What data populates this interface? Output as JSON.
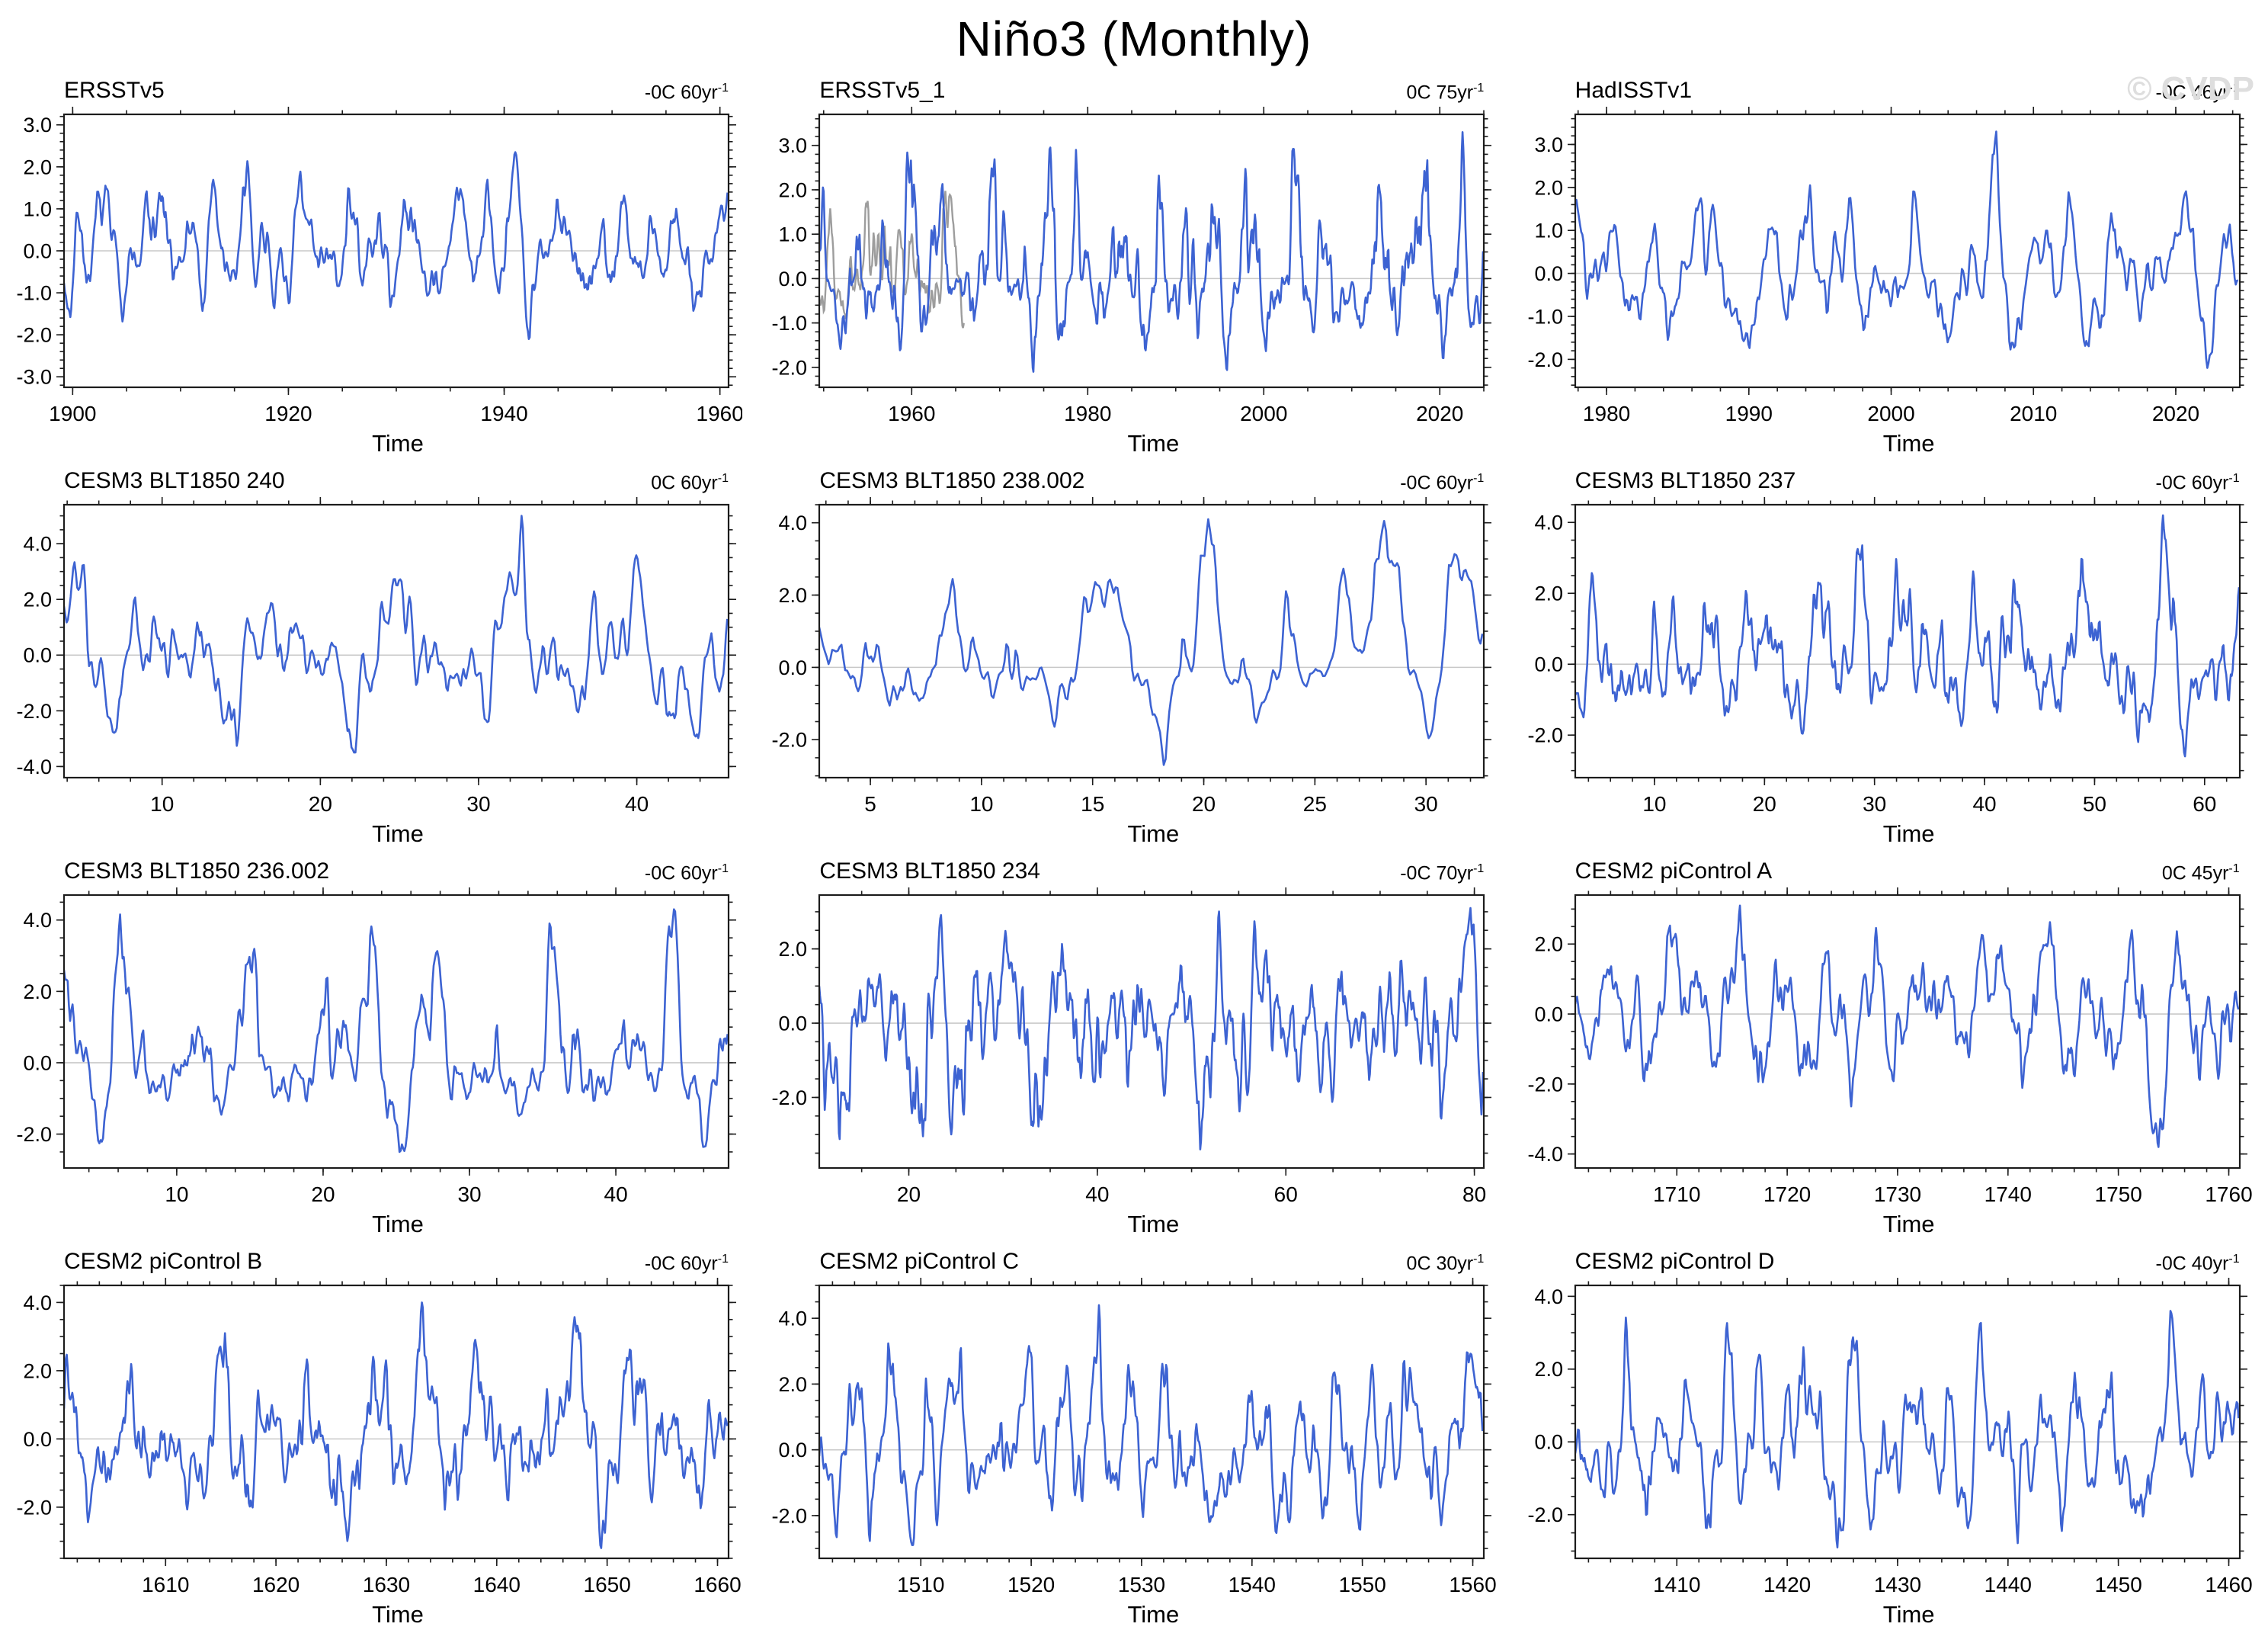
{
  "page": {
    "title": "Niño3 (Monthly)",
    "watermark": "© CVDP"
  },
  "style": {
    "line_color": "#3d63d2",
    "overlay_color": "#9d9d9d",
    "zero_line_color": "#c9c9c9",
    "frame_color": "#1c1c1c",
    "tick_color": "#1c1c1c",
    "label_color": "#000000"
  },
  "chart_data": [
    {
      "type": "line",
      "title": "ERSSTv5",
      "trend": {
        "text": "-0C 60yr",
        "sup": "-1"
      },
      "xlabel": "Time",
      "xlim": [
        1899.2,
        1960.8
      ],
      "xticks": [
        1900,
        1920,
        1940,
        1960
      ],
      "xtick_labels": [
        "1900",
        "1920",
        "1940",
        "1960"
      ],
      "minor_x": 5,
      "ylim": [
        -3.25,
        3.25
      ],
      "yticks": [
        -3,
        -2,
        -1,
        0,
        1,
        2,
        3
      ],
      "ytick_labels": [
        "-3.0",
        "-2.0",
        "-1.0",
        "0.0",
        "1.0",
        "2.0",
        "3.0"
      ],
      "minor_y": 0.2,
      "seed": 7,
      "peak": 2.35,
      "trough": -2.1,
      "points_per_year": 12,
      "gray_overlay": false
    },
    {
      "type": "line",
      "title": "ERSSTv5_1",
      "trend": {
        "text": "0C 75yr",
        "sup": "-1"
      },
      "xlabel": "Time",
      "xlim": [
        1949.5,
        2025.0
      ],
      "xticks": [
        1960,
        1980,
        2000,
        2020
      ],
      "xtick_labels": [
        "1960",
        "1980",
        "2000",
        "2020"
      ],
      "minor_x": 5,
      "ylim": [
        -2.45,
        3.7
      ],
      "yticks": [
        -2,
        -1,
        0,
        1,
        2,
        3
      ],
      "ytick_labels": [
        "-2.0",
        "-1.0",
        "0.0",
        "1.0",
        "2.0",
        "3.0"
      ],
      "minor_y": 0.2,
      "seed": 12,
      "peak": 3.3,
      "trough": -2.1,
      "points_per_year": 12,
      "gray_overlay": true
    },
    {
      "type": "line",
      "title": "HadISSTv1",
      "trend": {
        "text": "-0C 46yr",
        "sup": "-1"
      },
      "xlabel": "Time",
      "xlim": [
        1977.8,
        2024.5
      ],
      "xticks": [
        1980,
        1990,
        2000,
        2010,
        2020
      ],
      "xtick_labels": [
        "1980",
        "1990",
        "2000",
        "2010",
        "2020"
      ],
      "minor_x": 2,
      "ylim": [
        -2.65,
        3.7
      ],
      "yticks": [
        -2,
        -1,
        0,
        1,
        2,
        3
      ],
      "ytick_labels": [
        "-2.0",
        "-1.0",
        "0.0",
        "1.0",
        "2.0",
        "3.0"
      ],
      "minor_y": 0.2,
      "seed": 23,
      "peak": 3.3,
      "trough": -2.2,
      "points_per_year": 12,
      "gray_overlay": false
    },
    {
      "type": "line",
      "title": "CESM3 BLT1850 240",
      "trend": {
        "text": "0C 60yr",
        "sup": "-1"
      },
      "xlabel": "Time",
      "xlim": [
        3.8,
        45.8
      ],
      "xticks": [
        10,
        20,
        30,
        40
      ],
      "xtick_labels": [
        "10",
        "20",
        "30",
        "40"
      ],
      "minor_x": 2,
      "ylim": [
        -4.4,
        5.4
      ],
      "yticks": [
        -4,
        -2,
        0,
        2,
        4
      ],
      "ytick_labels": [
        "-4.0",
        "-2.0",
        "0.0",
        "2.0",
        "4.0"
      ],
      "minor_y": 0.5,
      "seed": 31,
      "peak": 5.0,
      "trough": -3.5,
      "points_per_year": 12,
      "gray_overlay": false
    },
    {
      "type": "line",
      "title": "CESM3 BLT1850 238.002",
      "trend": {
        "text": "-0C 60yr",
        "sup": "-1"
      },
      "xlabel": "Time",
      "xlim": [
        2.7,
        32.6
      ],
      "xticks": [
        5,
        10,
        15,
        20,
        25,
        30
      ],
      "xtick_labels": [
        "5",
        "10",
        "15",
        "20",
        "25",
        "30"
      ],
      "minor_x": 1,
      "ylim": [
        -3.05,
        4.5
      ],
      "yticks": [
        -2,
        0,
        2,
        4
      ],
      "ytick_labels": [
        "-2.0",
        "0.0",
        "2.0",
        "4.0"
      ],
      "minor_y": 0.5,
      "seed": 42,
      "peak": 4.1,
      "trough": -2.7,
      "points_per_year": 12,
      "gray_overlay": false
    },
    {
      "type": "line",
      "title": "CESM3 BLT1850 237",
      "trend": {
        "text": "-0C 60yr",
        "sup": "-1"
      },
      "xlabel": "Time",
      "xlim": [
        2.8,
        63.2
      ],
      "xticks": [
        10,
        20,
        30,
        40,
        50,
        60
      ],
      "xtick_labels": [
        "10",
        "20",
        "30",
        "40",
        "50",
        "60"
      ],
      "minor_x": 2,
      "ylim": [
        -3.2,
        4.5
      ],
      "yticks": [
        -2,
        0,
        2,
        4
      ],
      "ytick_labels": [
        "-2.0",
        "0.0",
        "2.0",
        "4.0"
      ],
      "minor_y": 0.5,
      "seed": 55,
      "peak": 4.2,
      "trough": -2.6,
      "points_per_year": 12,
      "gray_overlay": false
    },
    {
      "type": "line",
      "title": "CESM3 BLT1850 236.002",
      "trend": {
        "text": "-0C 60yr",
        "sup": "-1"
      },
      "xlabel": "Time",
      "xlim": [
        2.3,
        47.7
      ],
      "xticks": [
        10,
        20,
        30,
        40
      ],
      "xtick_labels": [
        "10",
        "20",
        "30",
        "40"
      ],
      "minor_x": 2,
      "ylim": [
        -2.95,
        4.7
      ],
      "yticks": [
        -2,
        0,
        2,
        4
      ],
      "ytick_labels": [
        "-2.0",
        "0.0",
        "2.0",
        "4.0"
      ],
      "minor_y": 0.5,
      "seed": 73,
      "peak": 4.3,
      "trough": -2.5,
      "points_per_year": 12,
      "gray_overlay": false
    },
    {
      "type": "line",
      "title": "CESM3 BLT1850 234",
      "trend": {
        "text": "-0C 70yr",
        "sup": "-1"
      },
      "xlabel": "Time",
      "xlim": [
        10.5,
        81.0
      ],
      "xticks": [
        20,
        40,
        60,
        80
      ],
      "xtick_labels": [
        "20",
        "40",
        "60",
        "80"
      ],
      "minor_x": 5,
      "ylim": [
        -3.9,
        3.45
      ],
      "yticks": [
        -2,
        0,
        2
      ],
      "ytick_labels": [
        "-2.0",
        "0.0",
        "2.0"
      ],
      "minor_y": 0.5,
      "seed": 88,
      "peak": 3.1,
      "trough": -3.4,
      "points_per_year": 12,
      "gray_overlay": false
    },
    {
      "type": "line",
      "title": "CESM2 piControl A",
      "trend": {
        "text": "0C 45yr",
        "sup": "-1"
      },
      "xlabel": "Time",
      "xlim": [
        1700.8,
        1761.0
      ],
      "xticks": [
        1710,
        1720,
        1730,
        1740,
        1750,
        1760
      ],
      "xtick_labels": [
        "1710",
        "1720",
        "1730",
        "1740",
        "1750",
        "1760"
      ],
      "minor_x": 2,
      "ylim": [
        -4.4,
        3.4
      ],
      "yticks": [
        -4,
        -2,
        0,
        2
      ],
      "ytick_labels": [
        "-4.0",
        "-2.0",
        "0.0",
        "2.0"
      ],
      "minor_y": 0.5,
      "seed": 91,
      "peak": 3.1,
      "trough": -3.8,
      "points_per_year": 12,
      "gray_overlay": false
    },
    {
      "type": "line",
      "title": "CESM2 piControl B",
      "trend": {
        "text": "-0C 60yr",
        "sup": "-1"
      },
      "xlabel": "Time",
      "xlim": [
        1600.8,
        1661.0
      ],
      "xticks": [
        1610,
        1620,
        1630,
        1640,
        1650,
        1660
      ],
      "xtick_labels": [
        "1610",
        "1620",
        "1630",
        "1640",
        "1650",
        "1660"
      ],
      "minor_x": 2,
      "ylim": [
        -3.5,
        4.5
      ],
      "yticks": [
        -2,
        0,
        2,
        4
      ],
      "ytick_labels": [
        "-2.0",
        "0.0",
        "2.0",
        "4.0"
      ],
      "minor_y": 0.5,
      "seed": 104,
      "peak": 4.0,
      "trough": -3.2,
      "points_per_year": 12,
      "gray_overlay": false
    },
    {
      "type": "line",
      "title": "CESM2 piControl C",
      "trend": {
        "text": "0C 30yr",
        "sup": "-1"
      },
      "xlabel": "Time",
      "xlim": [
        1500.8,
        1561.0
      ],
      "xticks": [
        1510,
        1520,
        1530,
        1540,
        1550,
        1560
      ],
      "xtick_labels": [
        "1510",
        "1520",
        "1530",
        "1540",
        "1550",
        "1560"
      ],
      "minor_x": 2,
      "ylim": [
        -3.3,
        5.0
      ],
      "yticks": [
        -2,
        0,
        2,
        4
      ],
      "ytick_labels": [
        "-2.0",
        "0.0",
        "2.0",
        "4.0"
      ],
      "minor_y": 0.5,
      "seed": 117,
      "peak": 4.4,
      "trough": -2.9,
      "points_per_year": 12,
      "gray_overlay": false
    },
    {
      "type": "line",
      "title": "CESM2 piControl D",
      "trend": {
        "text": "-0C 40yr",
        "sup": "-1"
      },
      "xlabel": "Time",
      "xlim": [
        1400.8,
        1461.0
      ],
      "xticks": [
        1410,
        1420,
        1430,
        1440,
        1450,
        1460
      ],
      "xtick_labels": [
        "1410",
        "1420",
        "1430",
        "1440",
        "1450",
        "1460"
      ],
      "minor_x": 2,
      "ylim": [
        -3.2,
        4.3
      ],
      "yticks": [
        -2,
        0,
        2,
        4
      ],
      "ytick_labels": [
        "-2.0",
        "0.0",
        "2.0",
        "4.0"
      ],
      "minor_y": 0.5,
      "seed": 129,
      "peak": 3.6,
      "trough": -2.9,
      "points_per_year": 12,
      "gray_overlay": false
    }
  ]
}
